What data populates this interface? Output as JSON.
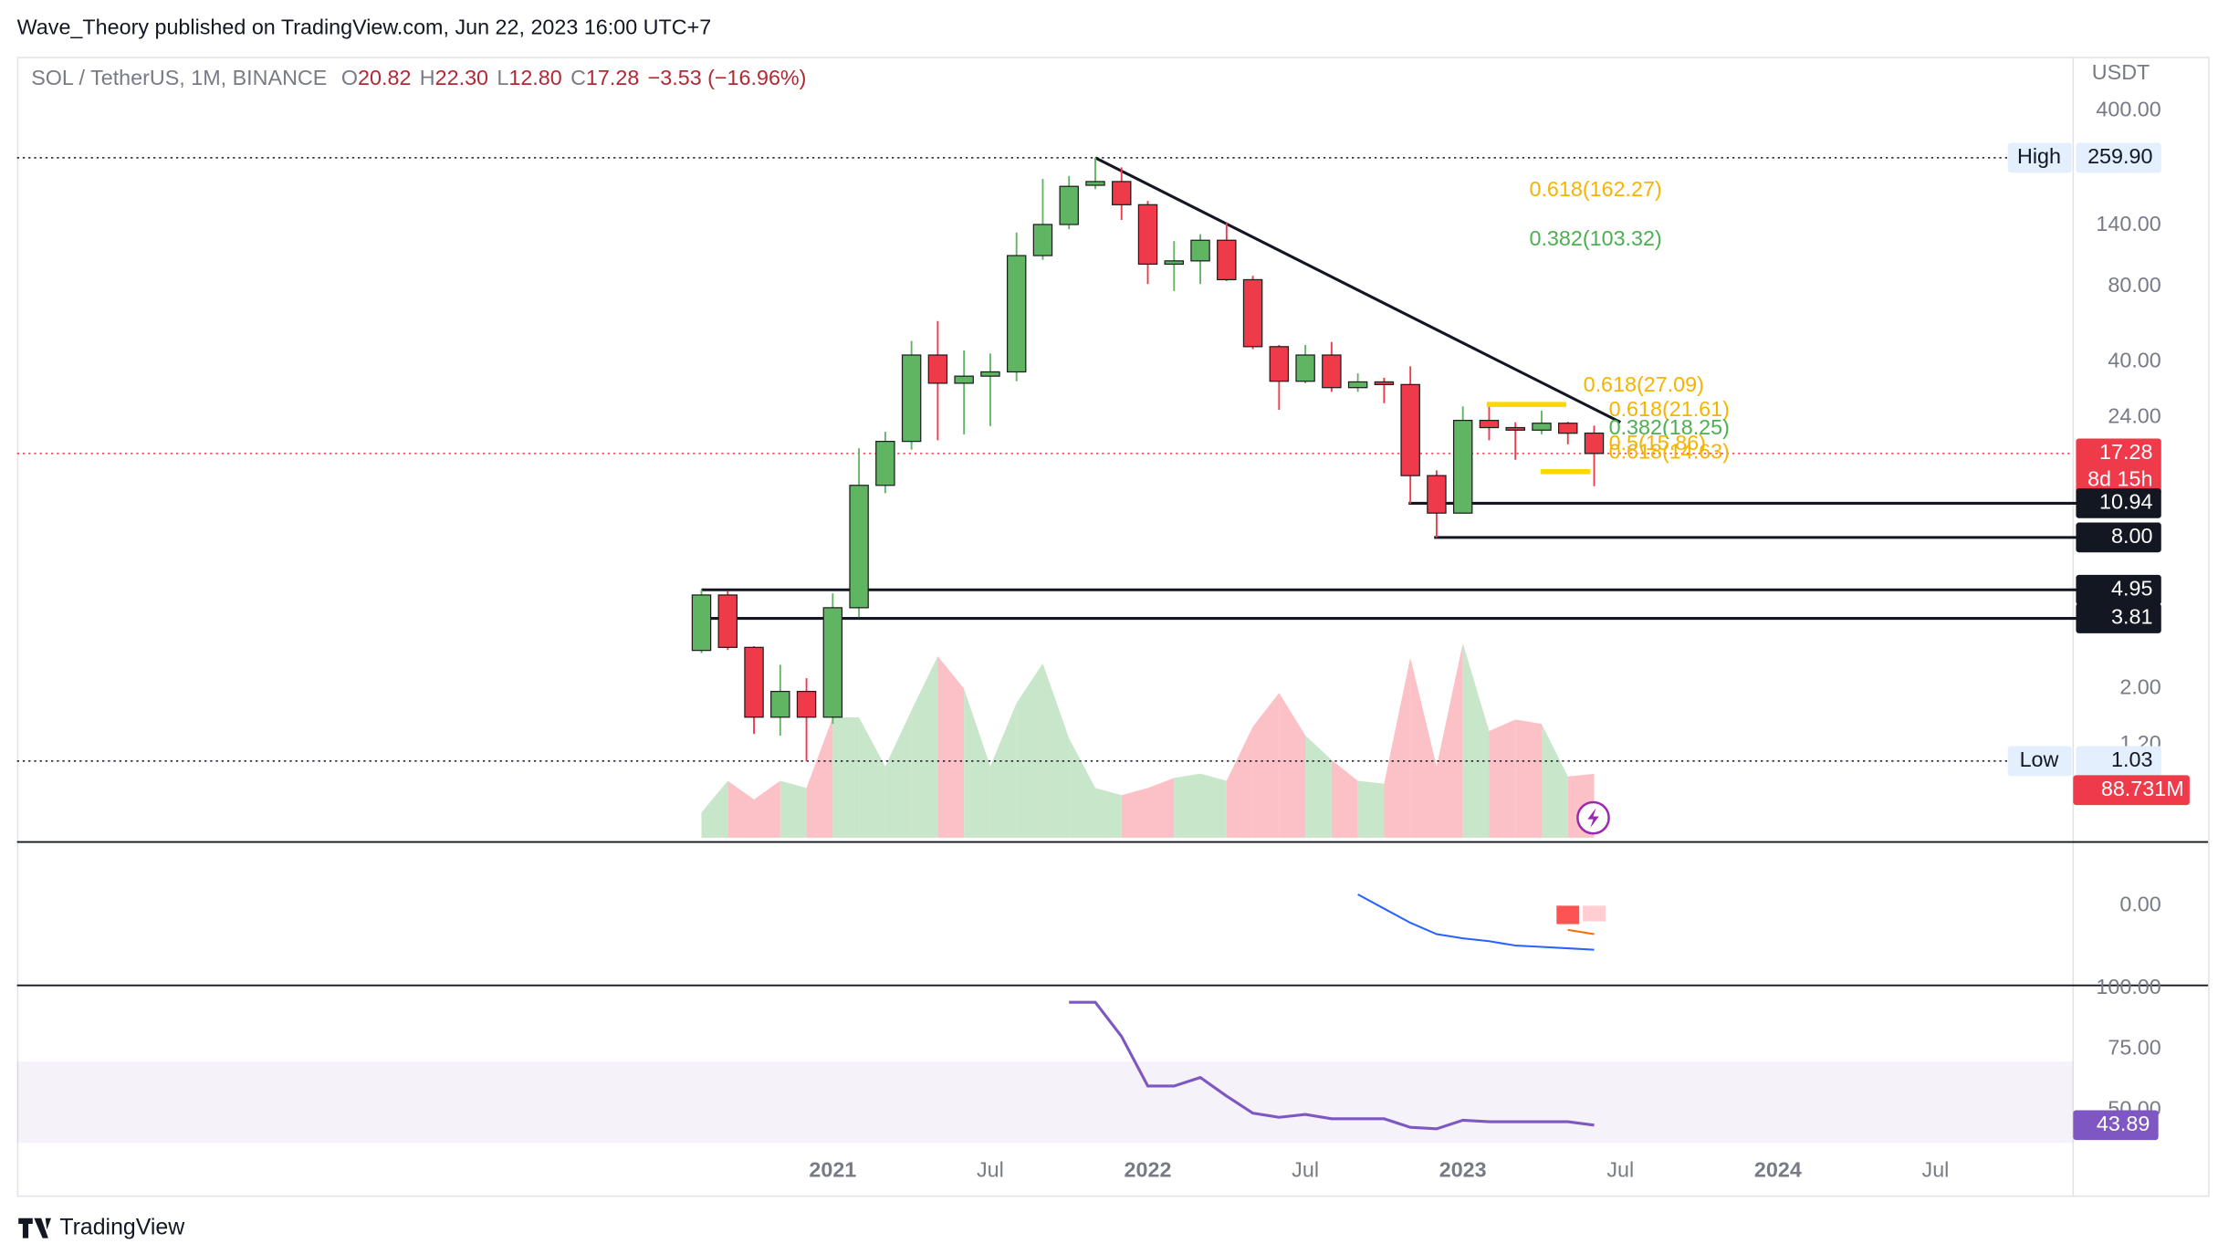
{
  "chart_data": {
    "type": "candlestick",
    "publisher": "Wave_Theory published on TradingView.com, Jun 22, 2023 16:00 UTC+7",
    "brand": "TradingView",
    "header": {
      "symbol": "SOL / TetherUS, 1M, BINANCE",
      "ohlc": [
        {
          "key": "O",
          "value": "20.82"
        },
        {
          "key": "H",
          "value": "22.30"
        },
        {
          "key": "L",
          "value": "12.80"
        },
        {
          "key": "C",
          "value": "17.28"
        }
      ],
      "change": "−3.53 (−16.96%)"
    },
    "y_unit": "USDT",
    "log_scale": true,
    "ylim": [
      0.51,
      656
    ],
    "yticks": [
      {
        "value": 400,
        "label": "400.00"
      },
      {
        "value": 140,
        "label": "140.00"
      },
      {
        "value": 80,
        "label": "80.00"
      },
      {
        "value": 40,
        "label": "40.00"
      },
      {
        "value": 24,
        "label": "24.00"
      },
      {
        "value": 2,
        "label": "2.00"
      },
      {
        "value": 1.2,
        "label": "1.20"
      }
    ],
    "categories": [
      null,
      null,
      null,
      null,
      null,
      "2021",
      null,
      null,
      null,
      null,
      null,
      "Jul",
      null,
      null,
      null,
      null,
      null,
      "2022",
      null,
      null,
      null,
      null,
      null,
      "Jul",
      null,
      null,
      null,
      null,
      null,
      "2023",
      null,
      null,
      null,
      null,
      null,
      "Jul",
      null,
      null,
      null,
      null,
      null,
      "2024",
      null,
      null,
      null,
      null,
      null,
      "Jul"
    ],
    "open": [
      2.84,
      4.72,
      2.92,
      1.54,
      1.95,
      1.54,
      4.2,
      12.9,
      19.3,
      42.6,
      32.9,
      35.1,
      36.5,
      106,
      141,
      202,
      209,
      169,
      98,
      101,
      122,
      85,
      46,
      33.5,
      42.6,
      31.6,
      33.3,
      32.5,
      14.1,
      10.0,
      23.4,
      21.9,
      21.4,
      22.8,
      20.82,
      null,
      null,
      null,
      null,
      null,
      null,
      null,
      null,
      null,
      null,
      null,
      null,
      null
    ],
    "high": [
      4.95,
      4.9,
      2.95,
      2.49,
      2.2,
      4.79,
      18.1,
      21.1,
      48.5,
      58.2,
      44.4,
      43.2,
      131,
      214,
      220,
      259.9,
      238,
      175,
      121,
      129,
      143,
      88,
      46.7,
      46.7,
      48,
      36,
      34.6,
      38.4,
      14.8,
      26.6,
      27.7,
      23,
      25.6,
      23.1,
      22.3,
      null,
      null,
      null,
      null,
      null,
      null,
      null,
      null,
      null,
      null,
      null,
      null,
      null
    ],
    "low": [
      2.77,
      2.85,
      1.32,
      1.3,
      1.03,
      1.45,
      3.85,
      12,
      17.9,
      19.5,
      20.6,
      22.2,
      33.5,
      102,
      135,
      195,
      147,
      81.7,
      76.6,
      81.7,
      84,
      45,
      25.8,
      32.9,
      30.4,
      30.4,
      27.4,
      10.9,
      8,
      9.97,
      19.5,
      16.3,
      20.6,
      18.8,
      12.8,
      null,
      null,
      null,
      null,
      null,
      null,
      null,
      null,
      null,
      null,
      null,
      null,
      null
    ],
    "close": [
      4.72,
      2.92,
      1.54,
      1.95,
      1.54,
      4.2,
      12.9,
      19.3,
      42.6,
      32.9,
      35.1,
      36.5,
      106,
      141,
      200,
      209,
      169,
      98,
      101,
      122,
      85,
      46,
      33.5,
      42.6,
      31.6,
      33.3,
      32.5,
      14.1,
      10.0,
      23.4,
      21.9,
      21.4,
      22.8,
      20.8,
      17.28,
      null,
      null,
      null,
      null,
      null,
      null,
      null,
      null,
      null,
      null,
      null,
      null,
      null
    ],
    "up_color": "#5fb562",
    "down_color": "#ef3a4a",
    "price_tags": [
      {
        "title": "High",
        "value": 259.9,
        "label": "259.90",
        "style": "extreme"
      },
      {
        "value": 17.28,
        "label": "17.28",
        "note": "8d 15h",
        "style": "last"
      },
      {
        "value": 10.94,
        "label": "10.94",
        "style": "level"
      },
      {
        "value": 8,
        "label": "8.00",
        "style": "level"
      },
      {
        "value": 4.95,
        "label": "4.95",
        "style": "level"
      },
      {
        "value": 3.81,
        "label": "3.81",
        "style": "level"
      },
      {
        "title": "Low",
        "value": 1.03,
        "label": "1.03",
        "style": "extreme"
      }
    ],
    "trendline": {
      "start": {
        "index": 15,
        "price": 259.9
      },
      "end": {
        "index": 35,
        "price": 23
      }
    },
    "annotations": [
      {
        "text": "0.618(162.27)",
        "price": 162.27,
        "color": "#f5b400"
      },
      {
        "text": "0.382(103.32)",
        "price": 103.32,
        "color": "#4caf50"
      },
      {
        "text": "0.618(27.09)",
        "price": 27.09,
        "color": "#f5b400"
      },
      {
        "text": "0.618(21.61)",
        "price": 21.61,
        "color": "#f5b400"
      },
      {
        "text": "0.382(18.25)",
        "price": 18.25,
        "color": "#4caf50"
      },
      {
        "text": "0.5(15.86)",
        "price": 15.86,
        "color": "#f5b400"
      },
      {
        "text": "0.618(14.63)",
        "price": 14.63,
        "color": "#f5b400"
      }
    ],
    "volume": {
      "ylim": [
        0,
        1084
      ],
      "values": [
        35,
        79,
        53,
        79,
        69,
        167,
        167,
        99,
        177,
        252,
        207,
        99,
        187,
        242,
        138,
        69,
        59,
        69,
        83,
        89,
        79,
        154,
        201,
        142,
        108,
        79,
        75,
        250,
        99,
        270,
        148,
        164,
        158,
        85,
        88.731,
        null,
        null,
        null,
        null,
        null,
        null,
        null,
        null,
        null,
        null,
        null,
        null,
        null
      ],
      "value_label": "88.731M",
      "up_color": "#c8e6c9",
      "down_color": "#fbc1c6"
    },
    "macd": {
      "ylim": [
        -5.4,
        4.4
      ],
      "yticks": [
        {
          "value": 0,
          "label": "0.00"
        }
      ],
      "macd": [
        null,
        null,
        null,
        null,
        null,
        null,
        null,
        null,
        null,
        null,
        null,
        null,
        null,
        null,
        null,
        null,
        null,
        null,
        null,
        null,
        null,
        null,
        null,
        null,
        null,
        0.78,
        -0.2,
        -1.18,
        -1.96,
        -2.25,
        -2.45,
        -2.75,
        -2.84,
        -2.94,
        -3.04,
        null,
        null,
        null,
        null,
        null,
        null,
        null,
        null,
        null,
        null,
        null,
        null,
        null
      ],
      "signal": [
        null,
        null,
        null,
        null,
        null,
        null,
        null,
        null,
        null,
        null,
        null,
        null,
        null,
        null,
        null,
        null,
        null,
        null,
        null,
        null,
        null,
        null,
        null,
        null,
        null,
        null,
        null,
        null,
        null,
        null,
        null,
        null,
        null,
        -1.67,
        -1.96,
        null,
        null,
        null,
        null,
        null,
        null,
        null,
        null,
        null,
        null,
        null,
        null,
        null
      ],
      "histogram": [
        null,
        null,
        null,
        null,
        null,
        null,
        null,
        null,
        null,
        null,
        null,
        null,
        null,
        null,
        null,
        null,
        null,
        null,
        null,
        null,
        null,
        null,
        null,
        null,
        null,
        null,
        null,
        null,
        null,
        null,
        null,
        null,
        null,
        -1.27,
        -1.08,
        null,
        null,
        null,
        null,
        null,
        null,
        null,
        null,
        null,
        null,
        null,
        null,
        null
      ],
      "histogram_colors": [
        "#ff5252",
        "#ffcdd2"
      ],
      "macd_color": "#2962ff",
      "signal_color": "#ff6d00"
    },
    "rsi": {
      "ylim": [
        36.6,
        101.7
      ],
      "yticks": [
        {
          "value": 100,
          "label": "100.00"
        },
        {
          "value": 75,
          "label": "75.00"
        },
        {
          "value": 50,
          "label": "50.00"
        }
      ],
      "band": [
        30,
        70
      ],
      "color": "#7e57c2",
      "values": [
        null,
        null,
        null,
        null,
        null,
        null,
        null,
        null,
        null,
        null,
        null,
        null,
        null,
        null,
        94.2,
        94.2,
        80.2,
        59.9,
        59.9,
        63.4,
        55.8,
        48.8,
        47.1,
        48.3,
        46.5,
        46.5,
        46.5,
        43,
        42.4,
        45.9,
        45.3,
        45.3,
        45.3,
        45.3,
        43.89,
        null,
        null,
        null,
        null,
        null,
        null,
        null,
        null,
        null,
        null,
        null,
        null,
        null
      ]
    }
  }
}
